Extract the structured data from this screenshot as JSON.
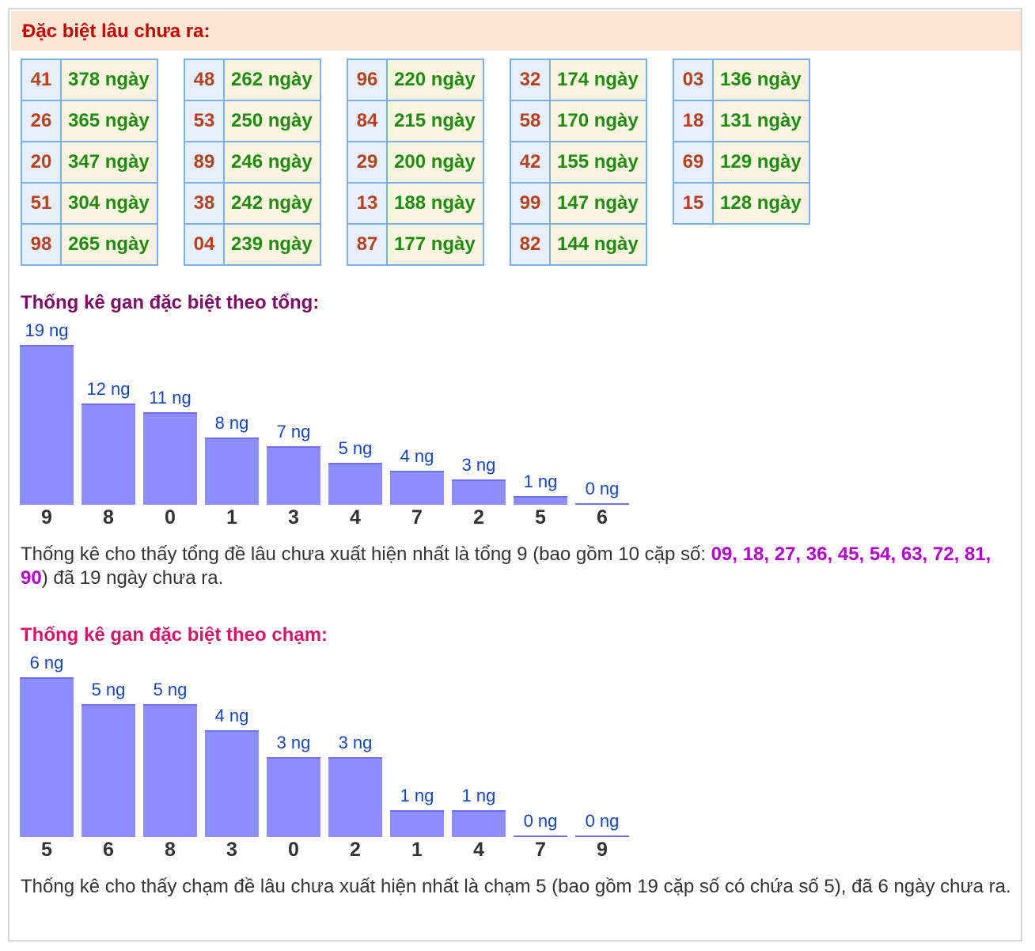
{
  "header": {
    "title": "Đặc biệt lâu chưa ra:"
  },
  "gan_tables": [
    [
      {
        "num": "41",
        "days": "378 ngày"
      },
      {
        "num": "26",
        "days": "365 ngày"
      },
      {
        "num": "20",
        "days": "347 ngày"
      },
      {
        "num": "51",
        "days": "304 ngày"
      },
      {
        "num": "98",
        "days": "265 ngày"
      }
    ],
    [
      {
        "num": "48",
        "days": "262 ngày"
      },
      {
        "num": "53",
        "days": "250 ngày"
      },
      {
        "num": "89",
        "days": "246 ngày"
      },
      {
        "num": "38",
        "days": "242 ngày"
      },
      {
        "num": "04",
        "days": "239 ngày"
      }
    ],
    [
      {
        "num": "96",
        "days": "220 ngày"
      },
      {
        "num": "84",
        "days": "215 ngày"
      },
      {
        "num": "29",
        "days": "200 ngày"
      },
      {
        "num": "13",
        "days": "188 ngày"
      },
      {
        "num": "87",
        "days": "177 ngày"
      }
    ],
    [
      {
        "num": "32",
        "days": "174 ngày"
      },
      {
        "num": "58",
        "days": "170 ngày"
      },
      {
        "num": "42",
        "days": "155 ngày"
      },
      {
        "num": "99",
        "days": "147 ngày"
      },
      {
        "num": "82",
        "days": "144 ngày"
      }
    ],
    [
      {
        "num": "03",
        "days": "136 ngày"
      },
      {
        "num": "18",
        "days": "131 ngày"
      },
      {
        "num": "69",
        "days": "129 ngày"
      },
      {
        "num": "15",
        "days": "128 ngày"
      }
    ]
  ],
  "tong": {
    "title": "Thống kê gan đặc biệt theo tổng:",
    "desc_before": "Thống kê cho thấy tổng đề lâu chưa xuất hiện nhất là tổng 9 (bao gồm 10 cặp số: ",
    "desc_highlight": "09, 18, 27, 36, 45, 54, 63, 72, 81, 90",
    "desc_after": ") đã 19 ngày chưa ra."
  },
  "cham": {
    "title": "Thống kê gan đặc biệt theo chạm:",
    "desc": "Thống kê cho thấy chạm đề lâu chưa xuất hiện nhất là chạm 5 (bao gồm 19 cặp số có chứa số 5), đã 6 ngày chưa ra."
  },
  "colors": {
    "header_bg": "#fbe6d3",
    "bar": "#8d8dff",
    "number_text": "#b5421c",
    "days_text": "#1f8c10",
    "highlight": "#b300cc"
  },
  "chart_data": [
    {
      "type": "bar",
      "categories": [
        "9",
        "8",
        "0",
        "1",
        "3",
        "4",
        "7",
        "2",
        "5",
        "6"
      ],
      "values": [
        19,
        12,
        11,
        8,
        7,
        5,
        4,
        3,
        1,
        0
      ],
      "value_labels": [
        "19 ng",
        "12 ng",
        "11 ng",
        "8 ng",
        "7 ng",
        "5 ng",
        "4 ng",
        "3 ng",
        "1 ng",
        "0 ng"
      ],
      "title": "Thống kê gan đặc biệt theo tổng:",
      "ylim": [
        0,
        19
      ],
      "grid": false
    },
    {
      "type": "bar",
      "categories": [
        "5",
        "6",
        "8",
        "3",
        "0",
        "2",
        "1",
        "4",
        "7",
        "9"
      ],
      "values": [
        6,
        5,
        5,
        4,
        3,
        3,
        1,
        1,
        0,
        0
      ],
      "value_labels": [
        "6 ng",
        "5 ng",
        "5 ng",
        "4 ng",
        "3 ng",
        "3 ng",
        "1 ng",
        "1 ng",
        "0 ng",
        "0 ng"
      ],
      "title": "Thống kê gan đặc biệt theo chạm:",
      "ylim": [
        0,
        6
      ],
      "grid": false
    }
  ]
}
